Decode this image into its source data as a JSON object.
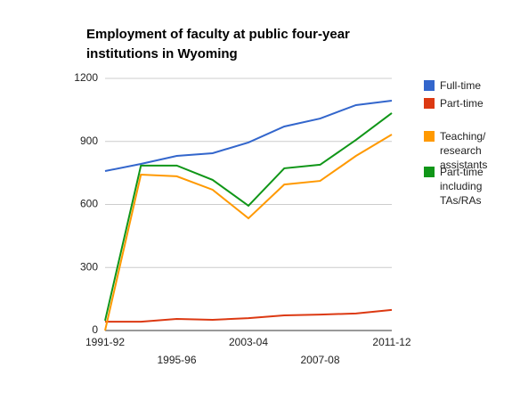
{
  "chart_data": {
    "type": "line",
    "title": "Employment of faculty at public four-year institutions in Wyoming",
    "categories": [
      "1991-92",
      null,
      "1995-96",
      null,
      "2003-04",
      null,
      "2007-08",
      null,
      "2011-12"
    ],
    "series": [
      {
        "name": "Full-time",
        "color": "#3366cc",
        "values": [
          759,
          793,
          831,
          844,
          895,
          971,
          1009,
          1073,
          1094
        ]
      },
      {
        "name": "Part-time",
        "color": "#dc3912",
        "values": [
          42,
          42,
          55,
          51,
          59,
          72,
          76,
          81,
          98
        ]
      },
      {
        "name": "Teaching/ research assistants",
        "color": "#ff9900",
        "values": [
          0,
          742,
          734,
          670,
          534,
          695,
          712,
          831,
          933
        ]
      },
      {
        "name": "Part-time including TAs/RAs",
        "color": "#109618",
        "values": [
          47,
          785,
          785,
          717,
          594,
          772,
          789,
          907,
          1035
        ]
      }
    ],
    "ylim": [
      0,
      1200
    ],
    "yticks": [
      0,
      300,
      600,
      900,
      1200
    ],
    "grid": true,
    "legend": "right"
  }
}
